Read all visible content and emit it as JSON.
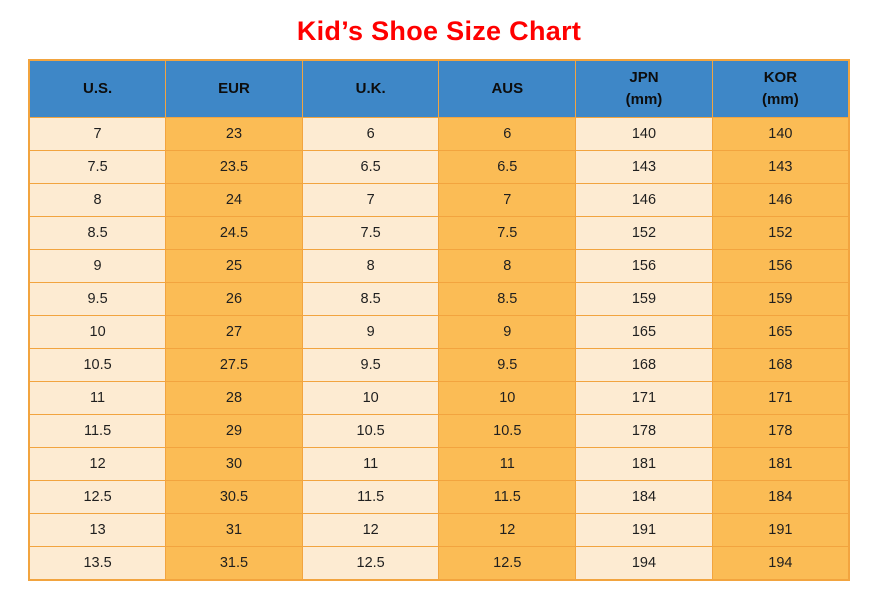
{
  "title": "Kid’s Shoe Size Chart",
  "colors": {
    "title_red": "#FF0000",
    "header_blue": "#3E87C7",
    "column_light": "#FDEBD2",
    "column_orange": "#FBBC55",
    "grid_border": "#F2A43F",
    "cell_text": "#1F1F1F"
  },
  "chart_data": {
    "type": "table",
    "title": "Kid’s Shoe Size Chart",
    "columns": [
      {
        "key": "us",
        "label": "U.S.",
        "sub": ""
      },
      {
        "key": "eur",
        "label": "EUR",
        "sub": ""
      },
      {
        "key": "uk",
        "label": "U.K.",
        "sub": ""
      },
      {
        "key": "aus",
        "label": "AUS",
        "sub": ""
      },
      {
        "key": "jpn",
        "label": "JPN",
        "sub": "(mm)"
      },
      {
        "key": "kor",
        "label": "KOR",
        "sub": "(mm)"
      }
    ],
    "rows": [
      [
        "7",
        "23",
        "6",
        "6",
        "140",
        "140"
      ],
      [
        "7.5",
        "23.5",
        "6.5",
        "6.5",
        "143",
        "143"
      ],
      [
        "8",
        "24",
        "7",
        "7",
        "146",
        "146"
      ],
      [
        "8.5",
        "24.5",
        "7.5",
        "7.5",
        "152",
        "152"
      ],
      [
        "9",
        "25",
        "8",
        "8",
        "156",
        "156"
      ],
      [
        "9.5",
        "26",
        "8.5",
        "8.5",
        "159",
        "159"
      ],
      [
        "10",
        "27",
        "9",
        "9",
        "165",
        "165"
      ],
      [
        "10.5",
        "27.5",
        "9.5",
        "9.5",
        "168",
        "168"
      ],
      [
        "11",
        "28",
        "10",
        "10",
        "171",
        "171"
      ],
      [
        "11.5",
        "29",
        "10.5",
        "10.5",
        "178",
        "178"
      ],
      [
        "12",
        "30",
        "11",
        "11",
        "181",
        "181"
      ],
      [
        "12.5",
        "30.5",
        "11.5",
        "11.5",
        "184",
        "184"
      ],
      [
        "13",
        "31",
        "12",
        "12",
        "191",
        "191"
      ],
      [
        "13.5",
        "31.5",
        "12.5",
        "12.5",
        "194",
        "194"
      ]
    ]
  }
}
